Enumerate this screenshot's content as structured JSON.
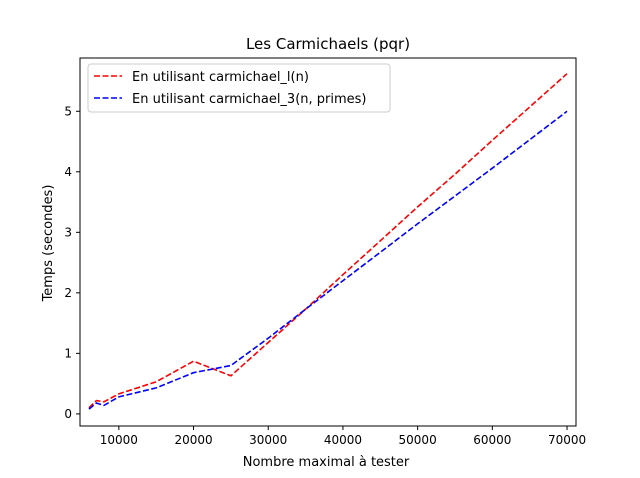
{
  "chart_data": {
    "type": "line",
    "title": "Les Carmichaels (pqr)",
    "xlabel": "Nombre maximal à tester",
    "ylabel": "Temps (secondes)",
    "xlim": [
      4800,
      71200
    ],
    "ylim": [
      -0.2,
      5.88
    ],
    "xticks": [
      10000,
      20000,
      30000,
      40000,
      50000,
      60000,
      70000
    ],
    "yticks": [
      0,
      1,
      2,
      3,
      4,
      5
    ],
    "grid": false,
    "legend_position": "top-left",
    "series": [
      {
        "name": "En utilisant carmichael_l(n)",
        "color": "#ff0000",
        "dash": "dashed",
        "x": [
          6000,
          7000,
          8000,
          10000,
          15000,
          20000,
          25000,
          30000,
          35000,
          40000,
          45000,
          50000,
          55000,
          60000,
          65000,
          70000
        ],
        "y": [
          0.1,
          0.22,
          0.2,
          0.33,
          0.53,
          0.87,
          0.63,
          1.18,
          1.73,
          2.3,
          2.86,
          3.42,
          3.96,
          4.52,
          5.07,
          5.62
        ]
      },
      {
        "name": "En utilisant carmichael_3(n, primes)",
        "color": "#0000ff",
        "dash": "dashed",
        "x": [
          6000,
          7000,
          8000,
          10000,
          15000,
          20000,
          25000,
          30000,
          35000,
          40000,
          45000,
          50000,
          55000,
          60000,
          65000,
          70000
        ],
        "y": [
          0.08,
          0.18,
          0.14,
          0.28,
          0.43,
          0.68,
          0.8,
          1.25,
          1.73,
          2.2,
          2.67,
          3.14,
          3.6,
          4.06,
          4.53,
          5.0
        ]
      }
    ]
  }
}
